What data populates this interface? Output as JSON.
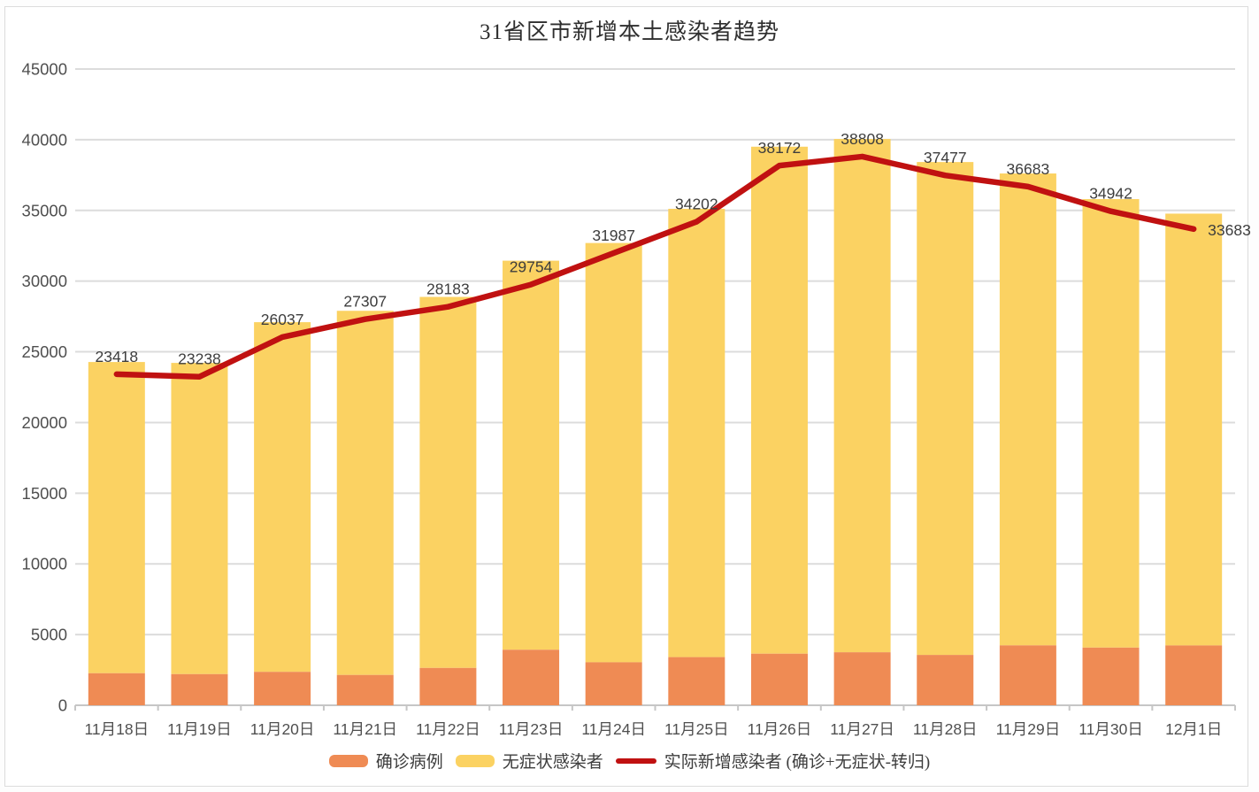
{
  "title": "31省区市新增本土感染者趋势",
  "legend": [
    {
      "label": "确诊病例",
      "type": "bar",
      "color": "#ef8b54"
    },
    {
      "label": "无症状感染者",
      "type": "bar",
      "color": "#fbd262"
    },
    {
      "label": "实际新增感染者 (确诊+无症状-转归)",
      "type": "line",
      "color": "#c01111"
    }
  ],
  "colors": {
    "confirmed_bar": "#ef8b54",
    "asymptomatic_bar": "#fbd262",
    "trend_line": "#c01111",
    "gridline": "#dcdcdc",
    "axis": "#c6c6c6",
    "axis_text": "#4f4f4f",
    "data_label_text": "#3d3d3d",
    "title_text": "#2e2e2e"
  },
  "chart_data": {
    "type": "bar",
    "subtype": "stacked-bars-with-line",
    "title": "31省区市新增本土感染者趋势",
    "categories": [
      "11月18日",
      "11月19日",
      "11月20日",
      "11月21日",
      "11月22日",
      "11月23日",
      "11月24日",
      "11月25日",
      "11月26日",
      "11月27日",
      "11月28日",
      "11月29日",
      "11月30日",
      "12月1日"
    ],
    "series": [
      {
        "name": "确诊病例",
        "type": "bar",
        "stack": true,
        "color": "#ef8b54",
        "values": [
          2267,
          2204,
          2365,
          2145,
          2641,
          3927,
          3041,
          3405,
          3648,
          3748,
          3561,
          4236,
          4080,
          4233
        ]
      },
      {
        "name": "无症状感染者",
        "type": "bar",
        "stack": true,
        "color": "#fbd262",
        "values": [
          22011,
          22011,
          24730,
          25754,
          26242,
          27517,
          29654,
          31709,
          35858,
          36304,
          34860,
          33376,
          31720,
          30539
        ]
      },
      {
        "name": "实际新增感染者 (确诊+无症状-转归)",
        "type": "line",
        "color": "#c01111",
        "labeled": true,
        "values": [
          23418,
          23238,
          26037,
          27307,
          28183,
          29754,
          31987,
          34202,
          38172,
          38808,
          37477,
          36683,
          34942,
          33683
        ]
      }
    ],
    "xlabel": "",
    "ylabel": "",
    "ylim": [
      0,
      45000
    ],
    "ytick_step": 5000,
    "yticks": [
      0,
      5000,
      10000,
      15000,
      20000,
      25000,
      30000,
      35000,
      40000,
      45000
    ],
    "grid": "horizontal",
    "legend_position": "bottom"
  }
}
